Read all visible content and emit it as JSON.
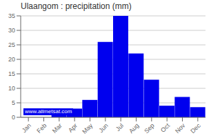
{
  "chart_data": {
    "type": "bar",
    "title": "Ulaangom : precipitation (mm)",
    "categories": [
      "Jan",
      "Feb",
      "Mar",
      "Apr",
      "May",
      "Jun",
      "Jul",
      "Aug",
      "Sep",
      "Oct",
      "Nov",
      "Dec"
    ],
    "values": [
      0,
      0,
      2.5,
      3,
      6,
      26,
      35,
      22,
      13,
      4,
      7,
      3.5
    ],
    "color": "#0000EE",
    "ylim": [
      0,
      35
    ],
    "yticks": [
      0,
      5,
      10,
      15,
      20,
      25,
      30,
      35
    ],
    "grid": true,
    "annotations": [
      "www.allmetsat.com"
    ]
  }
}
